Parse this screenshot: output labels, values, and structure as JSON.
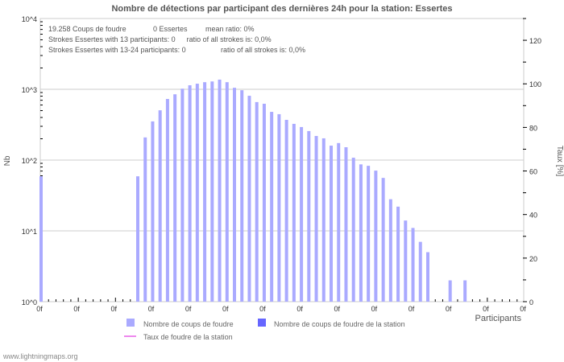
{
  "chart_data": {
    "type": "bar",
    "title": "Nombre de détections par participant des dernières 24h pour la station: Essertes",
    "xlabel": "Participants",
    "ylabel": "Nb",
    "ylabel_right": "Taux [%]",
    "yscale": "log",
    "ylim": [
      1,
      10000
    ],
    "ylim_right": [
      0,
      130
    ],
    "y_ticks": [
      "10^0",
      "10^1",
      "10^2",
      "10^3",
      "10^4"
    ],
    "y_right_ticks": [
      "0",
      "20",
      "40",
      "60",
      "80",
      "100",
      "120"
    ],
    "x_tick_label": "0f",
    "x_tick_count": 14,
    "grid": true,
    "info_lines": [
      [
        "19.258  Coups de foudre",
        "0 Essertes",
        "mean ratio: 0%"
      ],
      [
        "Strokes Essertes with 13 participants: 0",
        "ratio of all strokes is: 0,0%"
      ],
      [
        "Strokes Essertes with 13-24 participants: 0",
        "ratio of all strokes is: 0,0%"
      ]
    ],
    "series": [
      {
        "name": "Nombre de coups de foudre",
        "color": "#aaaaff",
        "values": [
          59,
          0,
          0,
          0,
          0,
          0,
          0,
          0,
          0,
          0,
          0,
          0,
          0,
          59,
          209,
          352,
          505,
          730,
          850,
          1020,
          1140,
          1200,
          1260,
          1290,
          1370,
          1260,
          1050,
          970,
          810,
          660,
          625,
          480,
          445,
          370,
          325,
          293,
          257,
          219,
          203,
          160,
          174,
          152,
          108,
          87,
          83,
          71,
          56,
          28,
          22,
          14,
          11,
          7,
          5,
          1,
          1,
          2,
          1,
          2,
          0,
          1,
          0,
          0,
          1,
          0,
          0
        ]
      },
      {
        "name": "Nombre de coups de foudre de la station",
        "color": "#6666ff",
        "values": [
          0,
          0,
          0,
          0,
          0,
          0,
          0,
          0,
          0,
          0,
          0,
          0,
          0,
          0,
          0,
          0,
          0,
          0,
          0,
          0,
          0,
          0,
          0,
          0,
          0,
          0,
          0,
          0,
          0,
          0,
          0,
          0,
          0,
          0,
          0,
          0,
          0,
          0,
          0,
          0,
          0,
          0,
          0,
          0,
          0,
          0,
          0,
          0,
          0,
          0,
          0,
          0,
          0,
          0,
          0,
          0,
          0,
          0,
          0,
          0,
          0,
          0,
          0,
          0,
          0
        ]
      },
      {
        "name": "Taux de foudre de la station",
        "color": "#ee88ee",
        "type": "line",
        "values": [
          0,
          0,
          0,
          0,
          0,
          0,
          0,
          0,
          0,
          0,
          0,
          0,
          0,
          0,
          0,
          0,
          0,
          0,
          0,
          0,
          0,
          0,
          0,
          0,
          0,
          0,
          0,
          0,
          0,
          0,
          0,
          0,
          0,
          0,
          0,
          0,
          0,
          0,
          0,
          0,
          0,
          0,
          0,
          0,
          0,
          0,
          0,
          0,
          0,
          0,
          0,
          0,
          0,
          0,
          0,
          0,
          0,
          0,
          0,
          0,
          0,
          0,
          0,
          0,
          0
        ]
      }
    ]
  },
  "footer": "www.lightningmaps.org"
}
